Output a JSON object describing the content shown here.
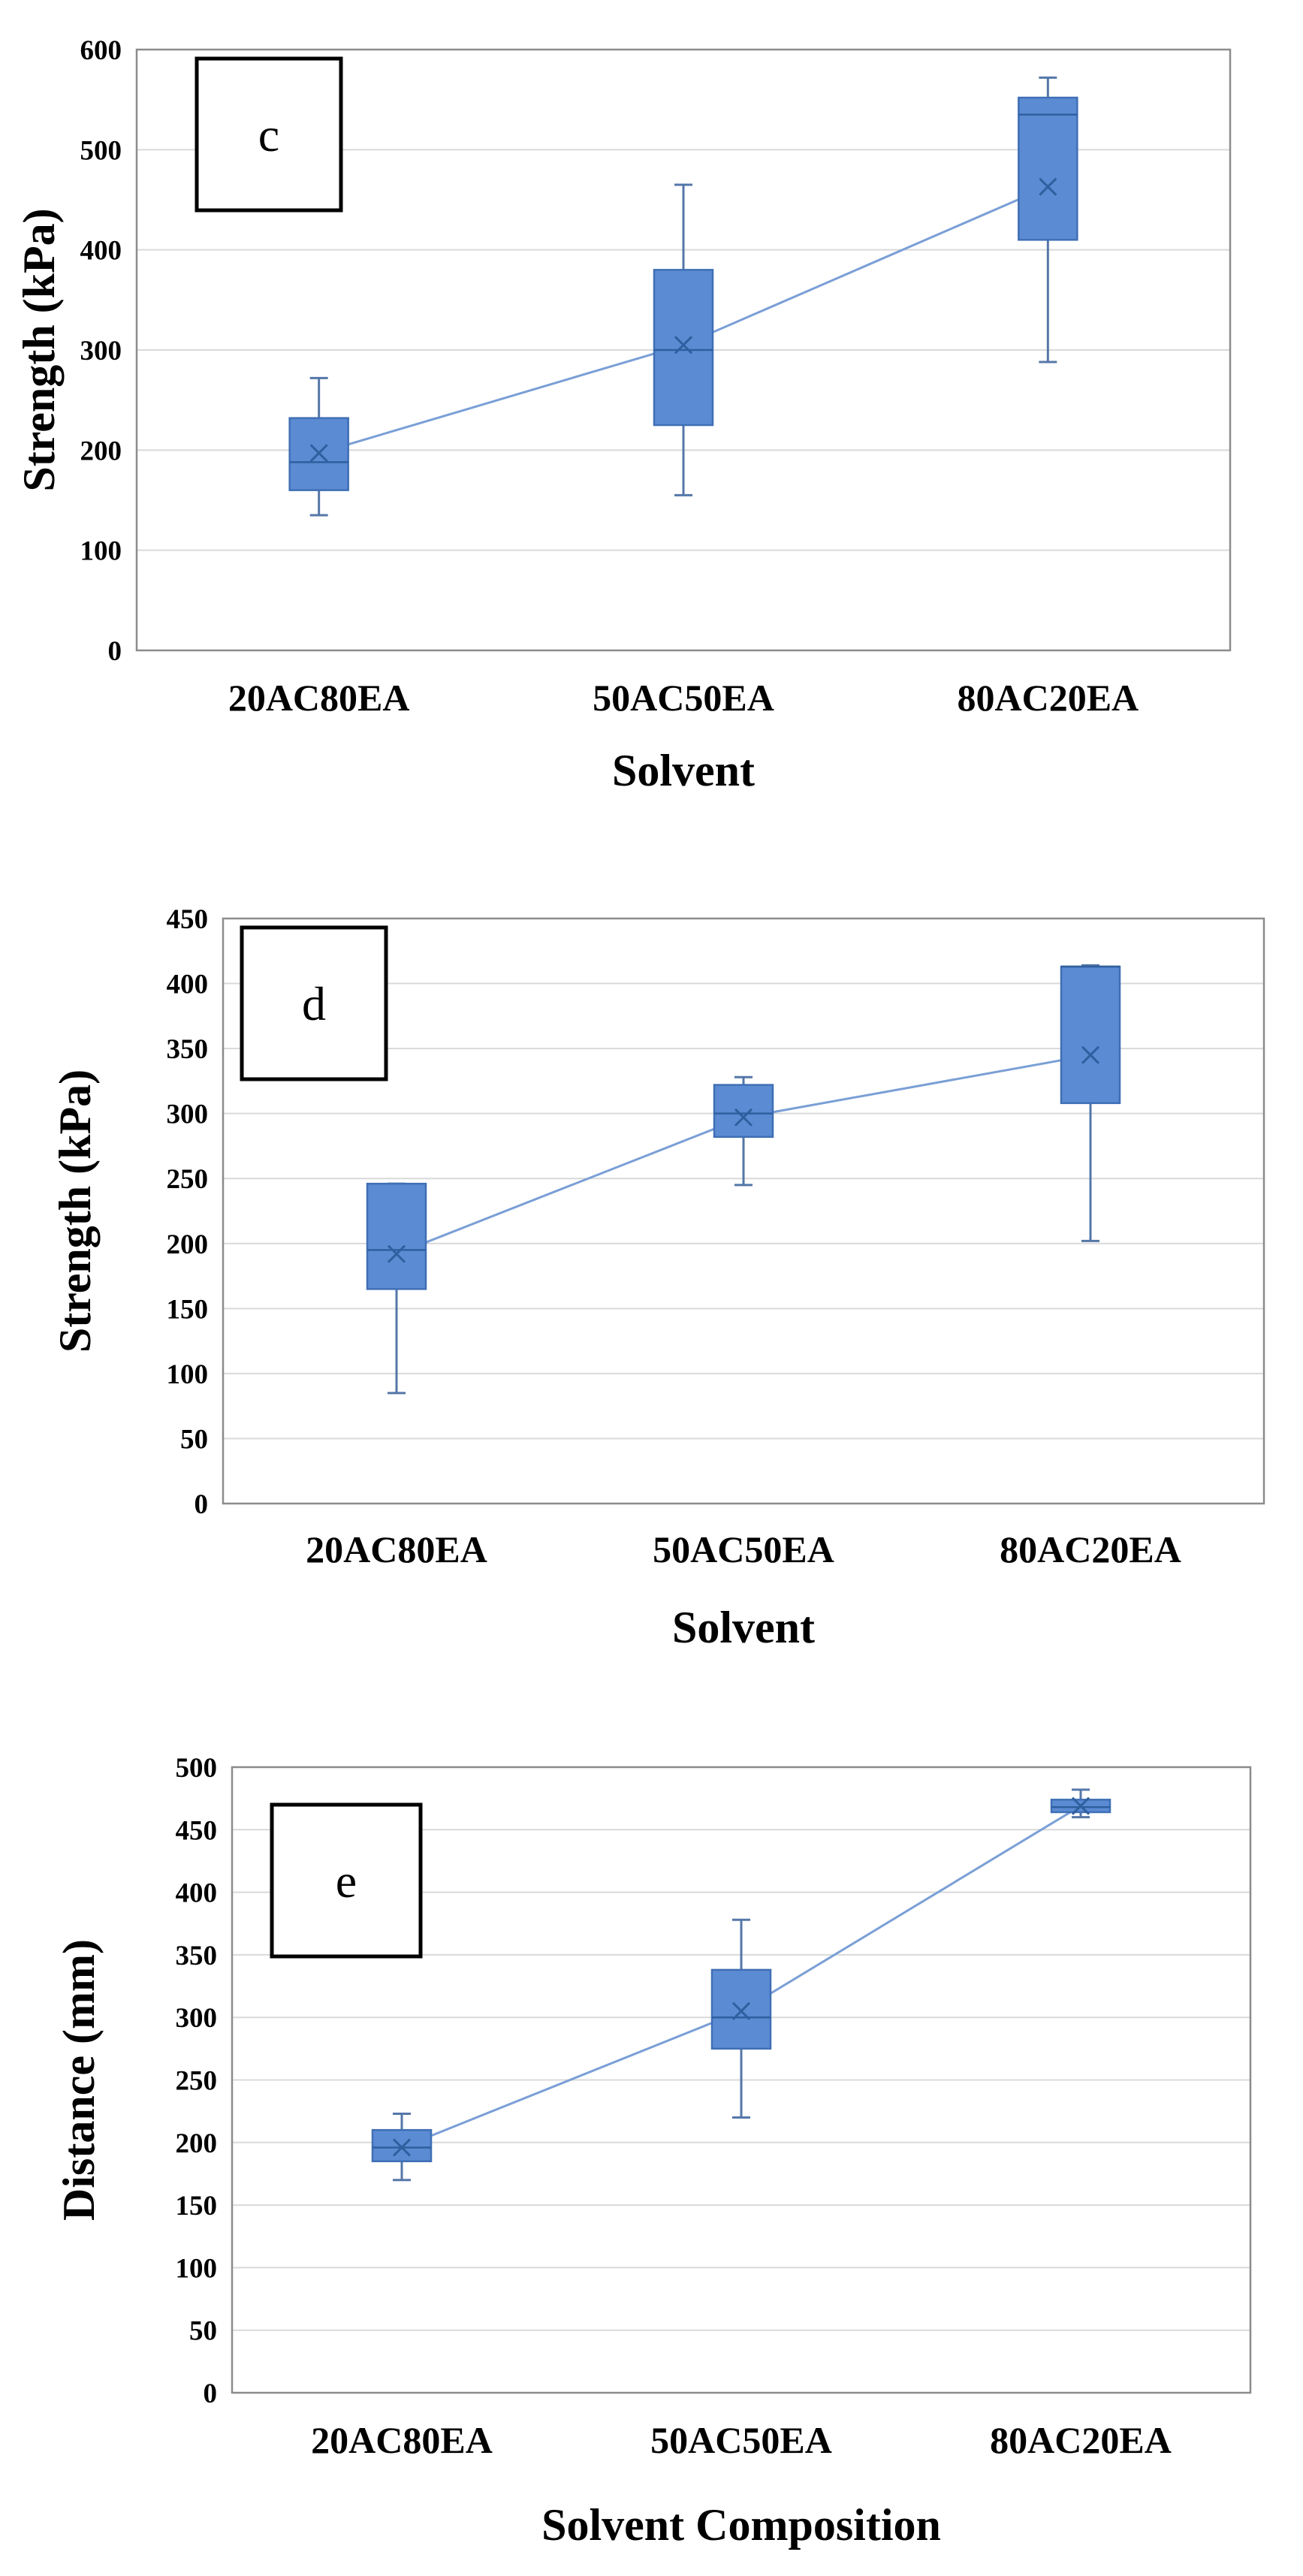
{
  "figure": {
    "panels": [
      {
        "label": "c",
        "chart_data": {
          "type": "box",
          "xlabel": "Solvent",
          "ylabel": "Strength (kPa)",
          "categories": [
            "20AC80EA",
            "50AC50EA",
            "80AC20EA"
          ],
          "ylim": [
            0,
            600
          ],
          "yticks": [
            0,
            100,
            200,
            300,
            400,
            500,
            600
          ],
          "grid": true,
          "series": [
            {
              "name": "Strength",
              "boxes": [
                {
                  "min": 135,
                  "q1": 160,
                  "median": 188,
                  "q3": 232,
                  "max": 272,
                  "mean": 197
                },
                {
                  "min": 155,
                  "q1": 225,
                  "median": 300,
                  "q3": 380,
                  "max": 465,
                  "mean": 305
                },
                {
                  "min": 288,
                  "q1": 410,
                  "median": 535,
                  "q3": 552,
                  "max": 572,
                  "mean": 463
                }
              ]
            }
          ]
        }
      },
      {
        "label": "d",
        "chart_data": {
          "type": "box",
          "xlabel": "Solvent",
          "ylabel": "Strength (kPa)",
          "categories": [
            "20AC80EA",
            "50AC50EA",
            "80AC20EA"
          ],
          "ylim": [
            0,
            450
          ],
          "yticks": [
            0,
            50,
            100,
            150,
            200,
            250,
            300,
            350,
            400,
            450
          ],
          "grid": true,
          "series": [
            {
              "name": "Strength",
              "boxes": [
                {
                  "min": 85,
                  "q1": 165,
                  "median": 195,
                  "q3": 246,
                  "max": 246,
                  "mean": 192
                },
                {
                  "min": 245,
                  "q1": 282,
                  "median": 300,
                  "q3": 322,
                  "max": 328,
                  "mean": 297
                },
                {
                  "min": 202,
                  "q1": 308,
                  "median": 413,
                  "q3": 413,
                  "max": 414,
                  "mean": 345
                }
              ]
            }
          ]
        }
      },
      {
        "label": "e",
        "chart_data": {
          "type": "box",
          "xlabel": "Solvent Composition",
          "ylabel": "Distance (mm)",
          "categories": [
            "20AC80EA",
            "50AC50EA",
            "80AC20EA"
          ],
          "ylim": [
            0,
            500
          ],
          "yticks": [
            0,
            50,
            100,
            150,
            200,
            250,
            300,
            350,
            400,
            450,
            500
          ],
          "grid": true,
          "series": [
            {
              "name": "Distance",
              "boxes": [
                {
                  "min": 170,
                  "q1": 185,
                  "median": 196,
                  "q3": 210,
                  "max": 223,
                  "mean": 196
                },
                {
                  "min": 220,
                  "q1": 275,
                  "median": 300,
                  "q3": 338,
                  "max": 378,
                  "mean": 305
                },
                {
                  "min": 460,
                  "q1": 464,
                  "median": 468,
                  "q3": 474,
                  "max": 482,
                  "mean": 469
                }
              ]
            }
          ]
        }
      }
    ]
  },
  "colors": {
    "box_fill": "#5b8bd3",
    "box_stroke": "#3f6fb5",
    "line": "#7a9fd6",
    "whisker": "#5577a8",
    "grid": "#d9d9d9",
    "frame": "#8c8c8c",
    "text": "#000000"
  }
}
